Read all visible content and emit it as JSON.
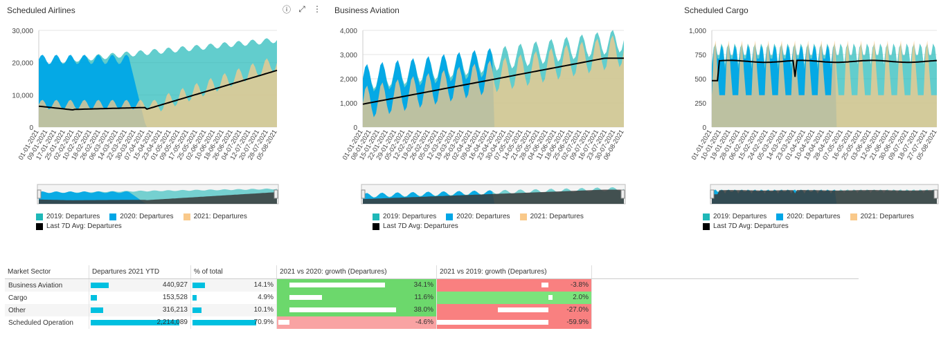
{
  "panels": [
    {
      "title": "Scheduled Airlines",
      "yticks": [
        "30,000",
        "20,000",
        "10,000",
        "0"
      ],
      "ymax": 30000,
      "xticks": [
        "01-01-2021",
        "09-01-2021",
        "17-01-2021",
        "25-01-2021",
        "02-02-2021",
        "10-02-2021",
        "18-02-2021",
        "26-02-2021",
        "06-03-2021",
        "14-03-2021",
        "22-03-2021",
        "30-03-2021",
        "07-04-2021",
        "15-04-2021",
        "23-04-2021",
        "01-05-2021",
        "09-05-2021",
        "17-05-2021",
        "25-05-2021",
        "02-06-2021",
        "10-06-2021",
        "18-06-2021",
        "26-06-2021",
        "04-07-2021",
        "12-07-2021",
        "20-07-2021",
        "28-07-2021",
        "05-08-2021"
      ]
    },
    {
      "title": "Business Aviation",
      "yticks": [
        "4,000",
        "3,000",
        "2,000",
        "1,000",
        "0"
      ],
      "ymax": 4000,
      "xticks": [
        "01-01-2021",
        "08-01-2021",
        "15-01-2021",
        "22-01-2021",
        "29-01-2021",
        "05-02-2021",
        "12-02-2021",
        "19-02-2021",
        "26-02-2021",
        "05-03-2021",
        "12-03-2021",
        "19-03-2021",
        "26-03-2021",
        "02-04-2021",
        "09-04-2021",
        "16-04-2021",
        "23-04-2021",
        "30-04-2021",
        "07-05-2021",
        "14-05-2021",
        "21-05-2021",
        "28-05-2021",
        "04-06-2021",
        "11-06-2021",
        "18-06-2021",
        "25-06-2021",
        "02-07-2021",
        "09-07-2021",
        "16-07-2021",
        "23-07-2021",
        "30-07-2021",
        "06-08-2021"
      ]
    },
    {
      "title": "Scheduled Cargo",
      "yticks": [
        "1,000",
        "750",
        "500",
        "250",
        "0"
      ],
      "ymax": 1000,
      "xticks": [
        "01-01-2021",
        "10-01-2021",
        "19-01-2021",
        "28-01-2021",
        "06-02-2021",
        "15-02-2021",
        "24-02-2021",
        "05-03-2021",
        "14-03-2021",
        "23-03-2021",
        "01-04-2021",
        "10-04-2021",
        "19-04-2021",
        "28-04-2021",
        "07-05-2021",
        "16-05-2021",
        "25-05-2021",
        "03-06-2021",
        "12-06-2021",
        "21-06-2021",
        "30-06-2021",
        "09-07-2021",
        "18-07-2021",
        "27-07-2021",
        "05-08-2021"
      ]
    }
  ],
  "legend": {
    "s2019": "2019: Departures",
    "s2020": "2020: Departures",
    "s2021": "2021: Departures",
    "avg": "Last 7D Avg: Departures"
  },
  "colors": {
    "c2019": "#1fb8b8",
    "c2020": "#00a6e6",
    "c2021": "#f9c98a",
    "avg": "#000000",
    "green": "#6cd86c",
    "red": "#f98080",
    "redlight": "#f9a3a3",
    "greenlight": "#7be37b",
    "bar": "#00c0e0"
  },
  "table": {
    "headers": [
      "Market Sector",
      "Departures 2021 YTD",
      "% of total",
      "2021 vs 2020: growth (Departures)",
      "2021 vs 2019: growth (Departures)"
    ],
    "rows": [
      {
        "sector": "Business Aviation",
        "ytd": "440,927",
        "ytd_v": 440927,
        "pct": "14.1%",
        "pct_v": 14.1,
        "g20": "34.1%",
        "g20_v": 34.1,
        "g19": "-3.8%",
        "g19_v": -3.8
      },
      {
        "sector": "Cargo",
        "ytd": "153,528",
        "ytd_v": 153528,
        "pct": "4.9%",
        "pct_v": 4.9,
        "g20": "11.6%",
        "g20_v": 11.6,
        "g19": "2.0%",
        "g19_v": 2.0
      },
      {
        "sector": "Other",
        "ytd": "316,213",
        "ytd_v": 316213,
        "pct": "10.1%",
        "pct_v": 10.1,
        "g20": "38.0%",
        "g20_v": 38.0,
        "g19": "-27.0%",
        "g19_v": -27.0
      },
      {
        "sector": "Scheduled Operation",
        "ytd": "2,214,089",
        "ytd_v": 2214089,
        "pct": "70.9%",
        "pct_v": 70.9,
        "g20": "-4.6%",
        "g20_v": -4.6,
        "g19": "-59.9%",
        "g19_v": -59.9
      }
    ]
  }
}
